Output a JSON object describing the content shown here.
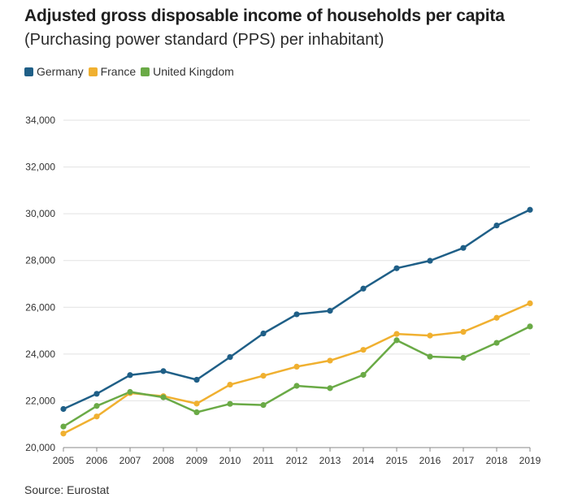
{
  "title": "Adjusted gross disposable income of households per capita",
  "subtitle": "(Purchasing power standard (PPS) per inhabitant)",
  "source": "Source: Eurostat",
  "legend": [
    {
      "name": "Germany",
      "color": "#1f5f87"
    },
    {
      "name": "France",
      "color": "#f0b030"
    },
    {
      "name": "United Kingdom",
      "color": "#6aaa46"
    }
  ],
  "chart_data": {
    "type": "line",
    "title": "Adjusted gross disposable income of households per capita",
    "subtitle": "(Purchasing power standard (PPS) per inhabitant)",
    "x": [
      "2005",
      "2006",
      "2007",
      "2008",
      "2009",
      "2010",
      "2011",
      "2012",
      "2013",
      "2014",
      "2015",
      "2016",
      "2017",
      "2018",
      "2019"
    ],
    "y_ticks": [
      20000,
      22000,
      24000,
      26000,
      28000,
      30000,
      32000,
      34000
    ],
    "y_tick_labels": [
      "20,000",
      "22,000",
      "24,000",
      "26,000",
      "28,000",
      "30,000",
      "32,000",
      "34,000"
    ],
    "ylim": [
      20000,
      34800
    ],
    "grid": "horizontal",
    "legend_position": "top-left",
    "series": [
      {
        "name": "Germany",
        "color": "#1f5f87",
        "values": [
          21650,
          22300,
          23100,
          23270,
          22900,
          23870,
          24880,
          25700,
          25850,
          26800,
          27670,
          27990,
          28540,
          29500,
          30170
        ]
      },
      {
        "name": "France",
        "color": "#f0b030",
        "values": [
          20600,
          21330,
          22330,
          22200,
          21880,
          22690,
          23070,
          23460,
          23720,
          24180,
          24860,
          24790,
          24950,
          25550,
          26170
        ]
      },
      {
        "name": "United Kingdom",
        "color": "#6aaa46",
        "values": [
          20900,
          21780,
          22380,
          22150,
          21510,
          21870,
          21820,
          22640,
          22540,
          23110,
          24590,
          23890,
          23840,
          24480,
          25180
        ]
      }
    ]
  }
}
